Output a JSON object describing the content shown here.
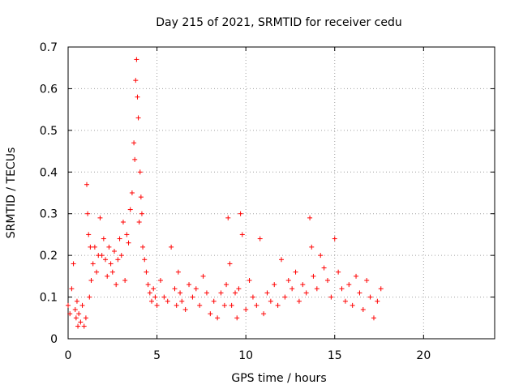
{
  "chart_data": {
    "type": "scatter",
    "title": "Day 215 of 2021, SRMTID for receiver cedu",
    "xlabel": "GPS time / hours",
    "ylabel": "SRMTID / TECUs",
    "xlim": [
      0,
      24
    ],
    "ylim": [
      0,
      0.7
    ],
    "xticks": [
      0,
      5,
      10,
      15,
      20
    ],
    "yticks": [
      0,
      0.1,
      0.2,
      0.3,
      0.4,
      0.5,
      0.6,
      0.7
    ],
    "grid": true,
    "marker": "+",
    "color": "#ff0000",
    "series": [
      {
        "name": "cedu",
        "x": [
          0.0,
          0.1,
          0.2,
          0.3,
          0.4,
          0.45,
          0.5,
          0.55,
          0.6,
          0.7,
          0.8,
          0.9,
          1.0,
          1.05,
          1.1,
          1.15,
          1.2,
          1.25,
          1.3,
          1.4,
          1.5,
          1.6,
          1.7,
          1.8,
          1.9,
          2.0,
          2.1,
          2.2,
          2.3,
          2.4,
          2.5,
          2.6,
          2.7,
          2.8,
          2.9,
          3.0,
          3.1,
          3.2,
          3.3,
          3.4,
          3.5,
          3.6,
          3.7,
          3.75,
          3.8,
          3.85,
          3.9,
          3.95,
          4.0,
          4.05,
          4.1,
          4.15,
          4.2,
          4.3,
          4.4,
          4.5,
          4.6,
          4.7,
          4.8,
          4.9,
          5.0,
          5.2,
          5.4,
          5.6,
          5.8,
          6.0,
          6.1,
          6.2,
          6.3,
          6.4,
          6.6,
          6.8,
          7.0,
          7.2,
          7.4,
          7.6,
          7.8,
          8.0,
          8.2,
          8.4,
          8.6,
          8.8,
          8.9,
          9.0,
          9.1,
          9.2,
          9.4,
          9.5,
          9.6,
          9.7,
          9.8,
          10.0,
          10.2,
          10.4,
          10.6,
          10.8,
          11.0,
          11.2,
          11.4,
          11.6,
          11.8,
          12.0,
          12.2,
          12.4,
          12.6,
          12.8,
          13.0,
          13.2,
          13.4,
          13.6,
          13.7,
          13.8,
          14.0,
          14.2,
          14.4,
          14.6,
          14.8,
          15.0,
          15.2,
          15.4,
          15.6,
          15.8,
          16.0,
          16.2,
          16.4,
          16.6,
          16.8,
          17.0,
          17.2,
          17.4,
          17.6
        ],
        "y": [
          0.08,
          0.06,
          0.12,
          0.18,
          0.07,
          0.05,
          0.09,
          0.03,
          0.06,
          0.04,
          0.08,
          0.03,
          0.05,
          0.37,
          0.3,
          0.25,
          0.1,
          0.22,
          0.14,
          0.18,
          0.22,
          0.16,
          0.2,
          0.29,
          0.2,
          0.24,
          0.19,
          0.15,
          0.22,
          0.18,
          0.16,
          0.21,
          0.13,
          0.19,
          0.24,
          0.2,
          0.28,
          0.14,
          0.25,
          0.23,
          0.31,
          0.35,
          0.47,
          0.43,
          0.62,
          0.67,
          0.58,
          0.53,
          0.28,
          0.4,
          0.34,
          0.3,
          0.22,
          0.19,
          0.16,
          0.13,
          0.11,
          0.09,
          0.12,
          0.1,
          0.08,
          0.14,
          0.1,
          0.09,
          0.22,
          0.12,
          0.08,
          0.16,
          0.11,
          0.09,
          0.07,
          0.13,
          0.1,
          0.12,
          0.08,
          0.15,
          0.11,
          0.06,
          0.09,
          0.05,
          0.11,
          0.08,
          0.13,
          0.29,
          0.18,
          0.08,
          0.11,
          0.05,
          0.12,
          0.3,
          0.25,
          0.07,
          0.14,
          0.1,
          0.08,
          0.24,
          0.06,
          0.11,
          0.09,
          0.13,
          0.08,
          0.19,
          0.1,
          0.14,
          0.12,
          0.16,
          0.09,
          0.13,
          0.11,
          0.29,
          0.22,
          0.15,
          0.12,
          0.2,
          0.17,
          0.14,
          0.1,
          0.24,
          0.16,
          0.12,
          0.09,
          0.13,
          0.08,
          0.15,
          0.11,
          0.07,
          0.14,
          0.1,
          0.05,
          0.09,
          0.12
        ]
      }
    ]
  }
}
